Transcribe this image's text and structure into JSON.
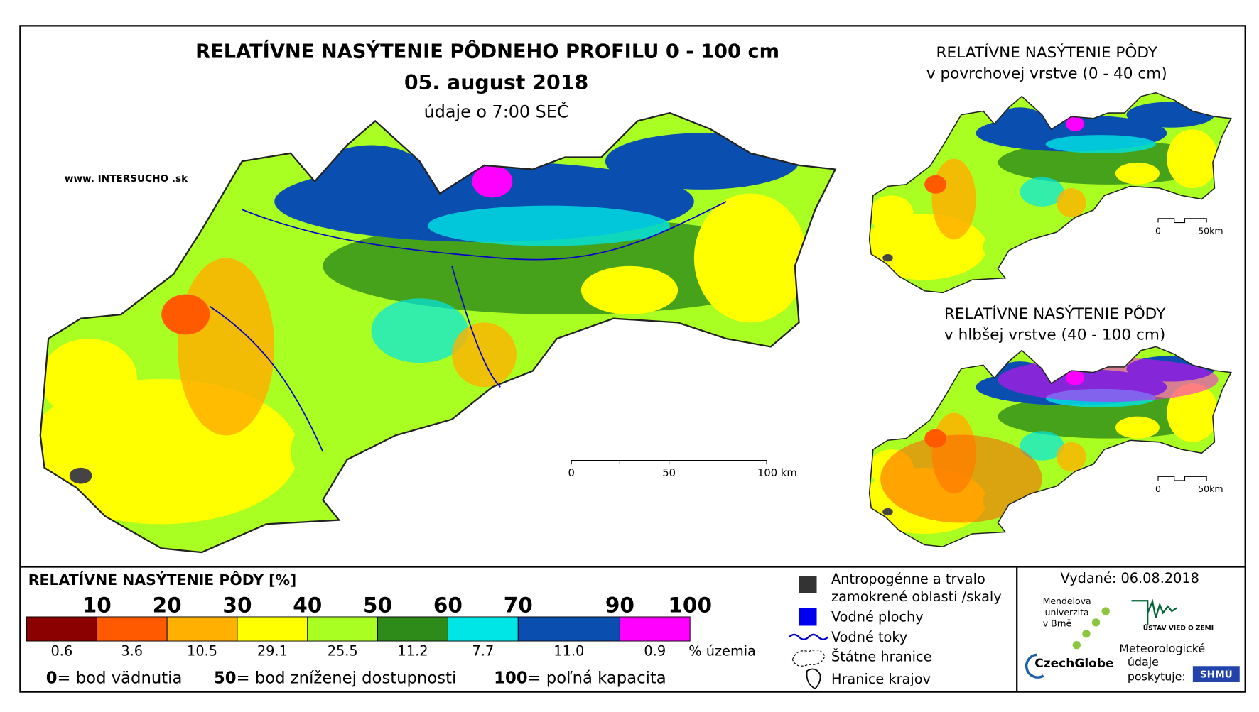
{
  "header": {
    "title": "RELATÍVNE NASÝTENIE PÔDNEHO PROFILU 0 - 100 cm",
    "date": "05. august 2018",
    "time": "údaje o 7:00 SEČ",
    "site": "www. INTERSUCHO .sk"
  },
  "main_map": {
    "scale": [
      "0",
      "50",
      "100 km"
    ]
  },
  "top_map": {
    "title": "RELATÍVNE NASÝTENIE PÔDY",
    "subtitle": "v povrchovej vrstve (0 - 40 cm)",
    "scale": [
      "0",
      "50km"
    ]
  },
  "bottom_map": {
    "title": "RELATÍVNE NASÝTENIE PÔDY",
    "subtitle": "v hlbšej vrstve (40 - 100 cm)",
    "scale": [
      "0",
      "50km"
    ]
  },
  "legend": {
    "title": "RELATÍVNE NASÝTENIE PÔDY [%]",
    "thresholds": [
      "10",
      "20",
      "30",
      "40",
      "50",
      "60",
      "70",
      "90",
      "100"
    ],
    "shares": [
      "0.6",
      "3.6",
      "10.5",
      "29.1",
      "25.5",
      "11.2",
      "7.7",
      "11.0",
      "0.9"
    ],
    "share_unit": "% územia",
    "definitions": [
      {
        "value": "0",
        "label": "= bod vädnutia"
      },
      {
        "value": "50",
        "label": "= bod zníženej dostupnosti"
      },
      {
        "value": "100",
        "label": "= poľná kapacita"
      }
    ]
  },
  "symbols": {
    "anthropogenic": [
      "Antropogénne a trvalo",
      "zamokrené oblasti /skaly"
    ],
    "water_areas": "Vodné plochy",
    "rivers": "Vodné toky",
    "state_border": "Štátne hranice",
    "regions": "Hranice krajov"
  },
  "issued": {
    "text": "Vydané: 06.08.2018",
    "mendel": [
      "Mendelova",
      "univerzita",
      "v Brně"
    ],
    "czechglobe": "CzechGlobe",
    "uvz": "ÚSTAV VIED O ZEMI",
    "meteo": [
      "Meteorologické",
      "údaje",
      "poskytuje:"
    ],
    "shmu": "SHMÚ"
  }
}
